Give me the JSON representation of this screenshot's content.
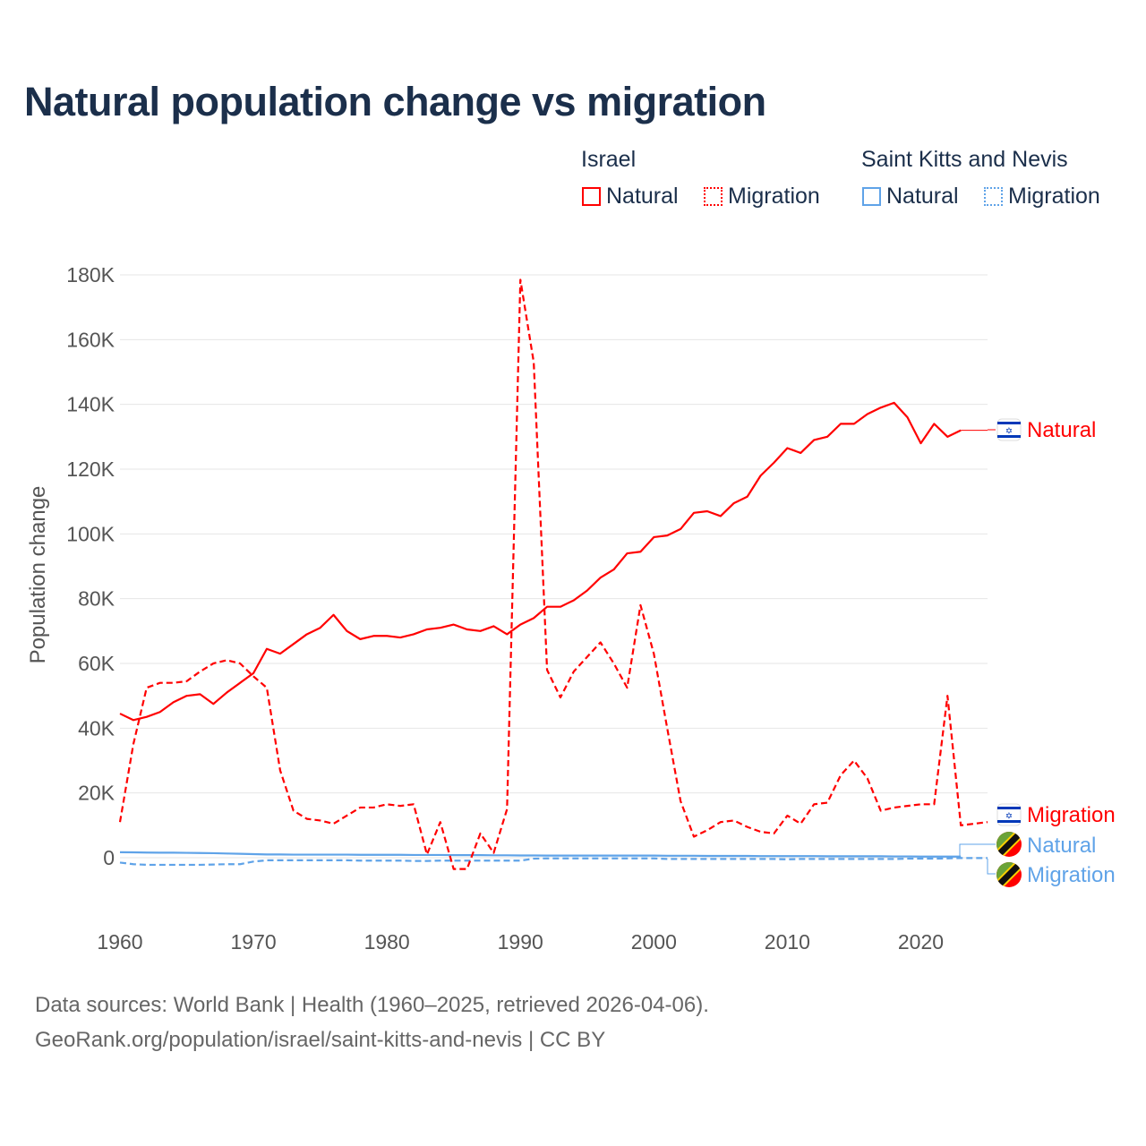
{
  "title": "Natural population change vs migration",
  "legend": {
    "groups": [
      {
        "name": "Israel",
        "items": [
          "Natural",
          "Migration"
        ],
        "color": "#ff0000"
      },
      {
        "name": "Saint Kitts and Nevis",
        "items": [
          "Natural",
          "Migration"
        ],
        "color": "#5fa3e8"
      }
    ]
  },
  "footer": {
    "line1": "Data sources: World Bank | Health (1960–2025, retrieved 2026-04-06).",
    "line2": "GeoRank.org/population/israel/saint-kitts-and-nevis | CC BY"
  },
  "end_labels": {
    "israel_natural": "Natural",
    "israel_migration": "Migration",
    "skn_natural": "Natural",
    "skn_migration": "Migration"
  },
  "chart_data": {
    "type": "line",
    "title": "Natural population change vs migration",
    "xlabel": "",
    "ylabel": "Population change",
    "xlim": [
      1960,
      2025
    ],
    "ylim": [
      0,
      180000
    ],
    "x_ticks": [
      "1960",
      "1970",
      "1980",
      "1990",
      "2000",
      "2010",
      "2020"
    ],
    "y_ticks": [
      "0",
      "20K",
      "40K",
      "60K",
      "80K",
      "100K",
      "120K",
      "140K",
      "160K",
      "180K"
    ],
    "grid": true,
    "legend_position": "top-right",
    "series": [
      {
        "name": "Israel Natural",
        "color": "#ff0000",
        "dash": false,
        "start_year": 1960,
        "values": [
          44500,
          42500,
          43500,
          45000,
          48000,
          50000,
          50500,
          47500,
          51000,
          54000,
          57000,
          64500,
          63000,
          66000,
          69000,
          71000,
          75000,
          70000,
          67500,
          68500,
          68500,
          68000,
          69000,
          70500,
          71000,
          72000,
          70500,
          70000,
          71500,
          69000,
          72000,
          74000,
          77500,
          77500,
          79500,
          82500,
          86500,
          89000,
          94000,
          94500,
          99000,
          99500,
          101500,
          106500,
          107000,
          105500,
          109500,
          111500,
          118000,
          122000,
          126500,
          125000,
          129000,
          130000,
          134000,
          134000,
          137000,
          139000,
          140500,
          136000,
          128000,
          134000,
          130000,
          132000
        ]
      },
      {
        "name": "Israel Migration",
        "color": "#ff0000",
        "dash": true,
        "start_year": 1960,
        "values": [
          11000,
          35000,
          52500,
          54000,
          54000,
          54500,
          57500,
          60000,
          61000,
          60000,
          56000,
          52500,
          27000,
          14500,
          12000,
          11500,
          10500,
          13000,
          15500,
          15500,
          16500,
          16000,
          16500,
          1000,
          11000,
          -3500,
          -3500,
          7500,
          1500,
          15000,
          178500,
          153000,
          58000,
          49500,
          57500,
          62000,
          66500,
          60000,
          52500,
          78000,
          63000,
          40000,
          17500,
          6500,
          8500,
          11000,
          11500,
          9500,
          8000,
          7500,
          13000,
          10500,
          16500,
          17000,
          25500,
          30000,
          24500,
          14500,
          15500,
          16000,
          16500,
          16500,
          50000,
          10000,
          10500,
          11000
        ]
      },
      {
        "name": "Saint Kitts and Nevis Natural",
        "color": "#5fa3e8",
        "dash": false,
        "start_year": 1960,
        "values": [
          1700,
          1650,
          1600,
          1550,
          1550,
          1500,
          1450,
          1400,
          1300,
          1200,
          1100,
          1000,
          1000,
          950,
          950,
          950,
          950,
          950,
          900,
          900,
          900,
          900,
          850,
          850,
          850,
          800,
          800,
          800,
          750,
          750,
          700,
          700,
          650,
          650,
          650,
          650,
          650,
          650,
          650,
          650,
          650,
          600,
          600,
          600,
          550,
          550,
          550,
          550,
          500,
          500,
          500,
          500,
          500,
          450,
          450,
          450,
          450,
          450,
          400,
          400,
          350,
          350,
          350,
          350
        ]
      },
      {
        "name": "Saint Kitts and Nevis Migration",
        "color": "#5fa3e8",
        "dash": true,
        "start_year": 1960,
        "values": [
          -1500,
          -2000,
          -2200,
          -2200,
          -2200,
          -2200,
          -2200,
          -2100,
          -2000,
          -2000,
          -1200,
          -800,
          -800,
          -800,
          -800,
          -800,
          -800,
          -800,
          -900,
          -900,
          -900,
          -900,
          -1000,
          -1000,
          -900,
          -900,
          -900,
          -900,
          -900,
          -900,
          -900,
          -300,
          -200,
          -200,
          -200,
          -200,
          -200,
          -200,
          -200,
          -200,
          -200,
          -400,
          -400,
          -400,
          -400,
          -400,
          -400,
          -400,
          -400,
          -400,
          -500,
          -400,
          -400,
          -400,
          -400,
          -400,
          -400,
          -400,
          -400,
          -300,
          -300,
          -300,
          -200,
          -100,
          -100,
          -100
        ]
      }
    ]
  }
}
